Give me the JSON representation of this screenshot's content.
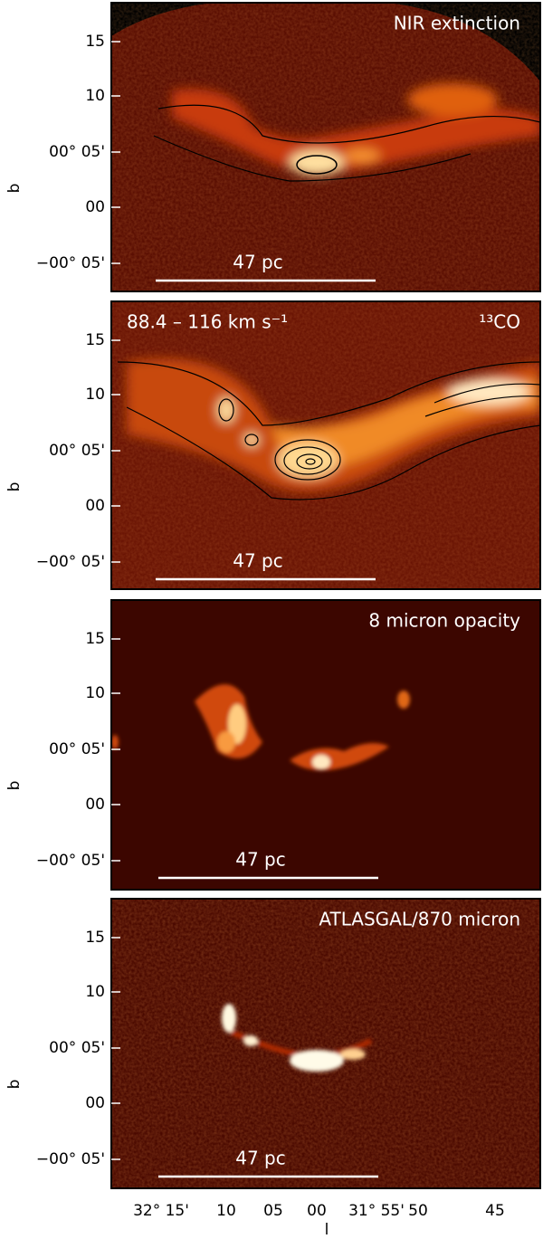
{
  "panels": [
    {
      "label": "NIR extinction",
      "scale_bar": "47 pc"
    },
    {
      "label": "88.4 – 116 km s⁻¹",
      "label2": "¹³CO",
      "scale_bar": "47 pc"
    },
    {
      "label": "8 micron opacity",
      "scale_bar": "47 pc"
    },
    {
      "label": "ATLASGAL/870 micron",
      "scale_bar": "47 pc"
    }
  ],
  "y_axis": {
    "label": "b",
    "ticks": [
      "15",
      "10",
      "00° 05'",
      "00",
      "−00° 05'"
    ]
  },
  "x_axis": {
    "label": "l",
    "ticks": [
      "32° 15'",
      "10",
      "05",
      "00",
      "31° 55'",
      "50",
      "45"
    ]
  }
}
